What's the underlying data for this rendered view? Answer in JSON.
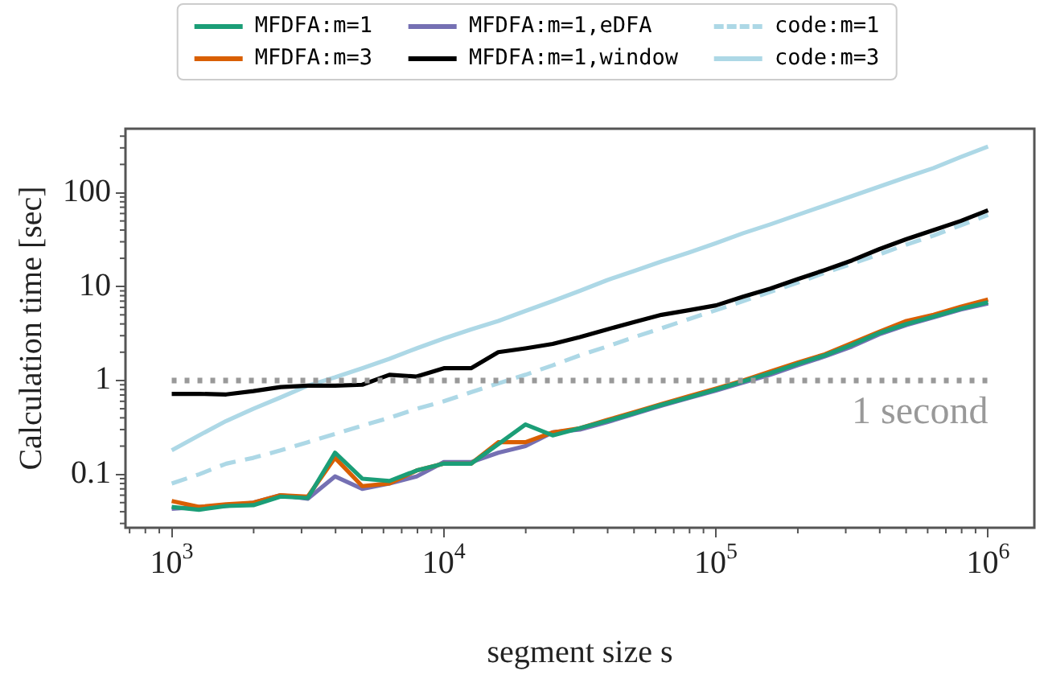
{
  "chart_data": {
    "type": "line",
    "xlabel": "segment size s",
    "ylabel": "Calculation time [sec]",
    "log": "xy",
    "grid": false,
    "legend": "top",
    "marker": "none",
    "xlim": [
      676,
      1480000
    ],
    "ylim": [
      0.027,
      480
    ],
    "xticks": [
      {
        "value": 1000,
        "label": "10$^{3}$"
      },
      {
        "value": 10000,
        "label": "10$^{4}$"
      },
      {
        "value": 100000,
        "label": "10$^{5}$"
      },
      {
        "value": 1000000,
        "label": "10$^{6}$"
      }
    ],
    "yticks": [
      0.1,
      1,
      10,
      100
    ],
    "x": [
      1000,
      1259,
      1585,
      1995,
      2512,
      3162,
      3981,
      5012,
      6310,
      7943,
      10000,
      12589,
      15849,
      19953,
      25119,
      31623,
      39811,
      50119,
      63096,
      79433,
      100000,
      125893,
      158489,
      199526,
      251189,
      316228,
      398107,
      501187,
      630957,
      794328,
      1000000
    ],
    "series": [
      {
        "name": "MFDFA:m=1",
        "color": "#1b9e77",
        "line_style": "solid",
        "values": [
          0.045,
          0.042,
          0.046,
          0.047,
          0.058,
          0.056,
          0.17,
          0.09,
          0.085,
          0.11,
          0.13,
          0.13,
          0.21,
          0.34,
          0.26,
          0.31,
          0.37,
          0.45,
          0.55,
          0.66,
          0.8,
          0.98,
          1.2,
          1.5,
          1.85,
          2.4,
          3.2,
          4.0,
          4.8,
          5.8,
          6.8
        ]
      },
      {
        "name": "MFDFA:m=3",
        "color": "#d95f02",
        "line_style": "solid",
        "values": [
          0.052,
          0.045,
          0.048,
          0.05,
          0.06,
          0.058,
          0.15,
          0.075,
          0.08,
          0.11,
          0.13,
          0.13,
          0.22,
          0.22,
          0.28,
          0.31,
          0.38,
          0.46,
          0.56,
          0.68,
          0.82,
          1.0,
          1.25,
          1.55,
          1.9,
          2.5,
          3.3,
          4.3,
          5.0,
          6.1,
          7.3
        ]
      },
      {
        "name": "MFDFA:m=1,eDFA",
        "color": "#7570b3",
        "line_style": "solid",
        "values": [
          0.043,
          0.045,
          0.046,
          0.05,
          0.06,
          0.055,
          0.095,
          0.07,
          0.08,
          0.095,
          0.135,
          0.135,
          0.17,
          0.2,
          0.28,
          0.3,
          0.36,
          0.44,
          0.54,
          0.65,
          0.78,
          0.95,
          1.15,
          1.45,
          1.8,
          2.3,
          3.1,
          3.9,
          4.7,
          5.7,
          6.6
        ]
      },
      {
        "name": "MFDFA:m=1,window",
        "color": "#000000",
        "line_style": "solid",
        "values": [
          0.72,
          0.72,
          0.71,
          0.77,
          0.85,
          0.88,
          0.88,
          0.9,
          1.15,
          1.1,
          1.35,
          1.35,
          2.0,
          2.2,
          2.45,
          2.9,
          3.5,
          4.2,
          5.0,
          5.6,
          6.3,
          7.8,
          9.5,
          12,
          15,
          19,
          25,
          32,
          40,
          50,
          65
        ]
      },
      {
        "name": "code:m=1",
        "color": "#add8e6",
        "line_style": "dashed",
        "values": [
          0.08,
          0.1,
          0.13,
          0.15,
          0.18,
          0.22,
          0.27,
          0.33,
          0.4,
          0.5,
          0.6,
          0.75,
          0.93,
          1.15,
          1.45,
          1.85,
          2.3,
          2.9,
          3.6,
          4.5,
          5.6,
          7,
          8.8,
          11,
          14,
          17.5,
          22,
          28,
          35,
          45,
          58
        ]
      },
      {
        "name": "code:m=3",
        "color": "#add8e6",
        "line_style": "solid",
        "values": [
          0.18,
          0.26,
          0.37,
          0.5,
          0.66,
          0.88,
          1.08,
          1.35,
          1.7,
          2.2,
          2.8,
          3.5,
          4.3,
          5.5,
          7,
          9,
          11.7,
          14.7,
          18.5,
          23,
          29,
          37,
          46,
          58,
          73,
          92,
          116,
          146,
          183,
          240,
          310
        ]
      }
    ],
    "ref_lines": [
      {
        "axis": "y",
        "value": 1,
        "label": "1 second",
        "color": "#999999",
        "line_style": "dotted"
      }
    ]
  }
}
